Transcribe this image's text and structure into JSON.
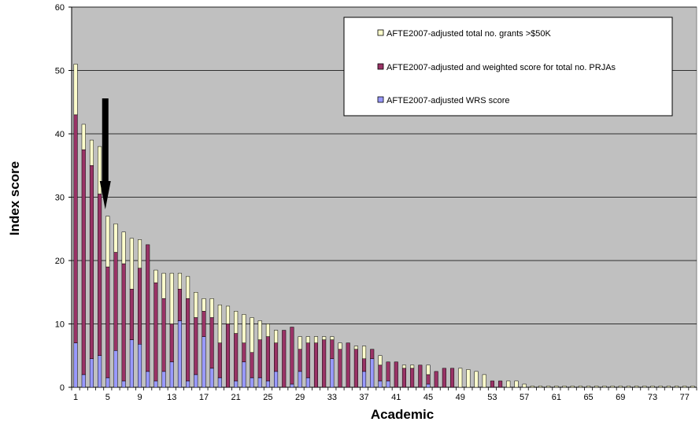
{
  "chart_data": {
    "type": "bar",
    "stacked": true,
    "title": "",
    "xlabel": "Academic",
    "ylabel": "Index score",
    "ylim": [
      0,
      60
    ],
    "yticks": [
      0,
      10,
      20,
      30,
      40,
      50,
      60
    ],
    "x": [
      1,
      2,
      3,
      4,
      5,
      6,
      7,
      8,
      9,
      10,
      11,
      12,
      13,
      14,
      15,
      16,
      17,
      18,
      19,
      20,
      21,
      22,
      23,
      24,
      25,
      26,
      27,
      28,
      29,
      30,
      31,
      32,
      33,
      34,
      35,
      36,
      37,
      38,
      39,
      40,
      41,
      42,
      43,
      44,
      45,
      46,
      47,
      48,
      49,
      50,
      51,
      52,
      53,
      54,
      55,
      56,
      57,
      58,
      59,
      60,
      61,
      62,
      63,
      64,
      65,
      66,
      67,
      68,
      69,
      70,
      71,
      72,
      73,
      74,
      75,
      76,
      77,
      78
    ],
    "xtick_labels": [
      "1",
      "5",
      "9",
      "13",
      "17",
      "21",
      "25",
      "29",
      "33",
      "37",
      "41",
      "45",
      "49",
      "53",
      "57",
      "61",
      "65",
      "69",
      "73",
      "77"
    ],
    "grid": true,
    "legend_position": "top-right",
    "series": [
      {
        "name": "AFTE2007-adjusted WRS score",
        "color": "#9999ff",
        "values": [
          7,
          2,
          4.5,
          5,
          1.5,
          5.8,
          1,
          7.5,
          6.8,
          2.5,
          1,
          2.5,
          4,
          10.5,
          1,
          2,
          8,
          3,
          1.5,
          0,
          1,
          4,
          1.5,
          1.5,
          1,
          2.5,
          0,
          0.5,
          2.5,
          1.5,
          0,
          0,
          4.5,
          0,
          0,
          0,
          2.5,
          4.5,
          1,
          1,
          0,
          0,
          0,
          0,
          0.5,
          0,
          0,
          0,
          0,
          0,
          0,
          0,
          0,
          0,
          0,
          0,
          0,
          0,
          0,
          0,
          0,
          0,
          0,
          0,
          0,
          0,
          0,
          0,
          0,
          0,
          0,
          0,
          0,
          0,
          0,
          0,
          0,
          0
        ]
      },
      {
        "name": "AFTE2007-adjusted and weighted score for total no. PRJAs",
        "color": "#993366",
        "values": [
          36,
          35.5,
          30.5,
          25.5,
          17.5,
          15.5,
          18.5,
          8,
          12,
          20,
          15.5,
          11.5,
          6,
          5,
          13,
          9,
          4,
          8,
          5.5,
          10,
          7.5,
          3,
          4,
          6,
          7,
          4.5,
          9,
          9,
          3.5,
          5.5,
          7,
          7.5,
          3,
          6,
          7,
          6,
          2,
          1.5,
          2.5,
          3,
          4,
          3,
          3,
          3.5,
          1.5,
          2.5,
          3,
          3,
          0,
          0,
          0,
          0,
          1,
          1,
          0,
          0,
          0,
          0,
          0,
          0,
          0,
          0,
          0,
          0,
          0,
          0,
          0,
          0,
          0,
          0,
          0,
          0,
          0,
          0,
          0,
          0,
          0,
          0
        ]
      },
      {
        "name": "AFTE2007-adjusted total no. grants >$50K",
        "color": "#ffffcc",
        "values": [
          8,
          4,
          4,
          7.5,
          8,
          4.5,
          5,
          8,
          4.5,
          0,
          2,
          4,
          8,
          2.5,
          3.5,
          4,
          2,
          3,
          6,
          2.8,
          3.5,
          4.5,
          5.5,
          3,
          2,
          2,
          0,
          0,
          2,
          1,
          1,
          0.5,
          0.5,
          1,
          0,
          0.5,
          2,
          0,
          1.5,
          0,
          0,
          0.5,
          0.5,
          0,
          1.5,
          0,
          0,
          0,
          3,
          2.8,
          2.5,
          2,
          0,
          0,
          1,
          1,
          0.5,
          0.2,
          0.2,
          0.2,
          0.2,
          0.2,
          0.2,
          0.2,
          0.2,
          0.2,
          0.2,
          0.2,
          0.2,
          0.2,
          0.2,
          0.2,
          0.2,
          0.2,
          0.2,
          0.2,
          0.2,
          0.2
        ]
      }
    ],
    "annotations": [
      {
        "type": "arrow",
        "points_to_x": 5,
        "direction": "down",
        "color": "#000000"
      }
    ]
  },
  "plot_background": "#c0c0c0",
  "page_background": "#ffffff"
}
